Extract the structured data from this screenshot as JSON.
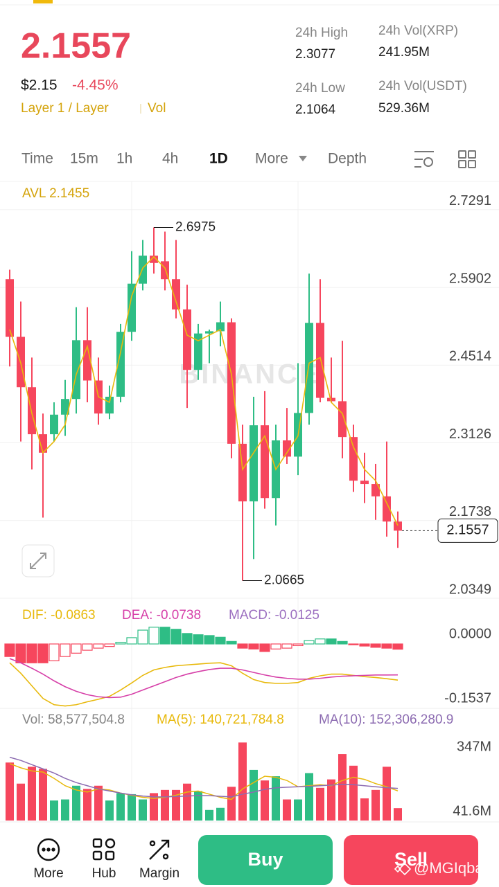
{
  "header": {
    "price": "2.1557",
    "usd_price": "$2.15",
    "change": "-4.45%",
    "tag": "Layer 1 / Layer",
    "vol_tag": "Vol",
    "stats": [
      {
        "label": "24h High",
        "value": "2.3077"
      },
      {
        "label": "24h Low",
        "value": "2.1064"
      },
      {
        "label": "24h Vol(XRP)",
        "value": "241.95M"
      },
      {
        "label": "24h Vol(USDT)",
        "value": "529.36M"
      }
    ]
  },
  "tabs": [
    "Time",
    "15m",
    "1h",
    "4h",
    "1D",
    "More",
    "Depth"
  ],
  "chart_data": [
    {
      "type": "candlestick",
      "label": "AVL 2.1455",
      "watermark": "BINANCE",
      "grid": true,
      "up_color": "#2ebd85",
      "down_color": "#f6465d",
      "ma_color": "#e8b90c",
      "ylim": [
        2.0337,
        2.7797
      ],
      "yticks": [
        2.7291,
        2.5902,
        2.4514,
        2.3126,
        2.1738,
        2.0349
      ],
      "candles": [
        {
          "o": 2.605,
          "h": 2.622,
          "l": 2.449,
          "c": 2.502
        },
        {
          "o": 2.502,
          "h": 2.565,
          "l": 2.315,
          "c": 2.412
        },
        {
          "o": 2.412,
          "h": 2.465,
          "l": 2.265,
          "c": 2.328
        },
        {
          "o": 2.328,
          "h": 2.365,
          "l": 2.179,
          "c": 2.295
        },
        {
          "o": 2.328,
          "h": 2.385,
          "l": 2.315,
          "c": 2.363
        },
        {
          "o": 2.363,
          "h": 2.425,
          "l": 2.325,
          "c": 2.391
        },
        {
          "o": 2.391,
          "h": 2.555,
          "l": 2.365,
          "c": 2.496
        },
        {
          "o": 2.496,
          "h": 2.555,
          "l": 2.385,
          "c": 2.424
        },
        {
          "o": 2.424,
          "h": 2.465,
          "l": 2.345,
          "c": 2.365
        },
        {
          "o": 2.365,
          "h": 2.415,
          "l": 2.355,
          "c": 2.395
        },
        {
          "o": 2.395,
          "h": 2.525,
          "l": 2.385,
          "c": 2.511
        },
        {
          "o": 2.511,
          "h": 2.655,
          "l": 2.495,
          "c": 2.597
        },
        {
          "o": 2.597,
          "h": 2.675,
          "l": 2.585,
          "c": 2.647
        },
        {
          "o": 2.647,
          "h": 2.6975,
          "l": 2.615,
          "c": 2.634
        },
        {
          "o": 2.637,
          "h": 2.69,
          "l": 2.585,
          "c": 2.605
        },
        {
          "o": 2.605,
          "h": 2.675,
          "l": 2.535,
          "c": 2.551
        },
        {
          "o": 2.551,
          "h": 2.595,
          "l": 2.375,
          "c": 2.443
        },
        {
          "o": 2.443,
          "h": 2.525,
          "l": 2.425,
          "c": 2.508
        },
        {
          "o": 2.508,
          "h": 2.515,
          "l": 2.455,
          "c": 2.512
        },
        {
          "o": 2.512,
          "h": 2.565,
          "l": 2.485,
          "c": 2.528
        },
        {
          "o": 2.528,
          "h": 2.535,
          "l": 2.285,
          "c": 2.311
        },
        {
          "o": 2.311,
          "h": 2.345,
          "l": 2.0665,
          "c": 2.208
        },
        {
          "o": 2.208,
          "h": 2.395,
          "l": 2.105,
          "c": 2.344
        },
        {
          "o": 2.344,
          "h": 2.405,
          "l": 2.195,
          "c": 2.214
        },
        {
          "o": 2.214,
          "h": 2.345,
          "l": 2.165,
          "c": 2.317
        },
        {
          "o": 2.317,
          "h": 2.375,
          "l": 2.275,
          "c": 2.288
        },
        {
          "o": 2.288,
          "h": 2.455,
          "l": 2.255,
          "c": 2.366
        },
        {
          "o": 2.366,
          "h": 2.615,
          "l": 2.345,
          "c": 2.527
        },
        {
          "o": 2.527,
          "h": 2.605,
          "l": 2.385,
          "c": 2.393
        },
        {
          "o": 2.393,
          "h": 2.465,
          "l": 2.385,
          "c": 2.387
        },
        {
          "o": 2.387,
          "h": 2.495,
          "l": 2.285,
          "c": 2.323
        },
        {
          "o": 2.323,
          "h": 2.345,
          "l": 2.225,
          "c": 2.245
        },
        {
          "o": 2.245,
          "h": 2.295,
          "l": 2.205,
          "c": 2.239
        },
        {
          "o": 2.239,
          "h": 2.275,
          "l": 2.175,
          "c": 2.217
        },
        {
          "o": 2.217,
          "h": 2.315,
          "l": 2.145,
          "c": 2.172
        },
        {
          "o": 2.172,
          "h": 2.19,
          "l": 2.125,
          "c": 2.1557
        }
      ],
      "ma": [
        2.515,
        2.455,
        2.365,
        2.295,
        2.315,
        2.345,
        2.435,
        2.485,
        2.395,
        2.385,
        2.475,
        2.575,
        2.625,
        2.645,
        2.625,
        2.565,
        2.505,
        2.495,
        2.505,
        2.515,
        2.435,
        2.265,
        2.295,
        2.325,
        2.265,
        2.295,
        2.325,
        2.455,
        2.465,
        2.385,
        2.365,
        2.305,
        2.265,
        2.245,
        2.205,
        2.165
      ]
    },
    {
      "type": "macd",
      "ylim": [
        -0.1537,
        0.0909
      ],
      "yticks": [
        {
          "value": 0,
          "label": "0.0000"
        },
        -0.1537
      ],
      "series": [
        {
          "name": "DIF: -0.0863",
          "color": "#e8b90c",
          "values": [
            -0.045,
            -0.07,
            -0.1,
            -0.13,
            -0.145,
            -0.148,
            -0.145,
            -0.138,
            -0.132,
            -0.125,
            -0.11,
            -0.093,
            -0.075,
            -0.062,
            -0.056,
            -0.052,
            -0.05,
            -0.048,
            -0.046,
            -0.045,
            -0.052,
            -0.07,
            -0.085,
            -0.092,
            -0.094,
            -0.094,
            -0.092,
            -0.082,
            -0.076,
            -0.072,
            -0.072,
            -0.075,
            -0.078,
            -0.08,
            -0.083,
            -0.0863
          ]
        },
        {
          "name": "DEA: -0.0738",
          "color": "#d63fa8",
          "values": [
            -0.035,
            -0.045,
            -0.058,
            -0.072,
            -0.088,
            -0.102,
            -0.113,
            -0.121,
            -0.126,
            -0.128,
            -0.127,
            -0.12,
            -0.11,
            -0.1,
            -0.09,
            -0.08,
            -0.072,
            -0.066,
            -0.061,
            -0.058,
            -0.058,
            -0.062,
            -0.068,
            -0.074,
            -0.079,
            -0.082,
            -0.084,
            -0.084,
            -0.082,
            -0.079,
            -0.077,
            -0.076,
            -0.075,
            -0.074,
            -0.074,
            -0.0738
          ]
        }
      ],
      "histogram": {
        "name": "MACD: -0.0125",
        "color": "#9c6fc0",
        "values": [
          -0.03,
          -0.045,
          -0.045,
          -0.045,
          -0.04,
          -0.03,
          -0.022,
          -0.015,
          -0.01,
          -0.006,
          0.004,
          0.015,
          0.033,
          0.04,
          0.04,
          0.035,
          0.025,
          0.022,
          0.02,
          0.016,
          0.006,
          -0.01,
          -0.012,
          -0.018,
          -0.012,
          -0.01,
          -0.004,
          0.008,
          0.012,
          0.012,
          0.006,
          -0.002,
          -0.005,
          -0.008,
          -0.01,
          -0.0125
        ]
      }
    },
    {
      "type": "volume",
      "label": "Vol: 58,577,504.8",
      "ylim": [
        0,
        417
      ],
      "yticks": [
        {
          "value": 347,
          "label": "347M"
        },
        {
          "value": 41.6,
          "label": "41.6M"
        }
      ],
      "values": [
        275,
        175,
        255,
        245,
        95,
        100,
        165,
        150,
        165,
        95,
        130,
        125,
        100,
        130,
        145,
        145,
        175,
        140,
        50,
        60,
        160,
        370,
        240,
        190,
        210,
        100,
        100,
        225,
        155,
        195,
        315,
        260,
        105,
        145,
        255,
        58.6
      ],
      "series": [
        {
          "name": "MA(5): 140,721,784.8",
          "color": "#e8b90c",
          "values": [
            270,
            250,
            235,
            230,
            200,
            165,
            145,
            135,
            150,
            145,
            130,
            120,
            110,
            105,
            110,
            120,
            135,
            140,
            125,
            110,
            100,
            150,
            180,
            210,
            205,
            190,
            160,
            165,
            170,
            165,
            190,
            205,
            195,
            175,
            160,
            140.7
          ]
        },
        {
          "name": "MA(10): 152,306,280.9",
          "color": "#8c6bb1",
          "values": [
            300,
            285,
            265,
            245,
            225,
            200,
            180,
            165,
            150,
            140,
            130,
            122,
            116,
            112,
            112,
            114,
            116,
            118,
            118,
            115,
            112,
            125,
            135,
            148,
            155,
            158,
            160,
            162,
            165,
            168,
            172,
            170,
            165,
            160,
            156,
            152.3
          ]
        }
      ]
    }
  ],
  "nav": [
    "More",
    "Hub",
    "Margin"
  ],
  "buttons": {
    "buy": "Buy",
    "sell": "Sell"
  },
  "watermark": "@MGIqbal"
}
